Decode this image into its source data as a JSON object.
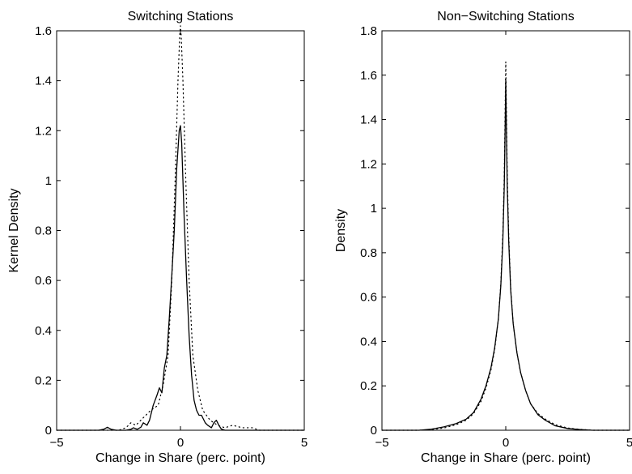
{
  "chart_data": [
    {
      "type": "line",
      "title": "Switching Stations",
      "xlabel": "Change in Share (perc. point)",
      "ylabel": "Kernel Density",
      "xlim": [
        -5,
        5
      ],
      "ylim": [
        0,
        1.6
      ],
      "xticks": [
        "-5",
        "0",
        "5"
      ],
      "yticks": [
        "0",
        "0.2",
        "0.4",
        "0.6",
        "0.8",
        "1",
        "1.2",
        "1.4",
        "1.6"
      ],
      "grid": false,
      "series": [
        {
          "style": "solid",
          "x": [
            -5,
            -3.3,
            -3.1,
            -2.95,
            -2.8,
            -2.6,
            -2.2,
            -2.0,
            -1.9,
            -1.75,
            -1.6,
            -1.5,
            -1.35,
            -1.25,
            -1.1,
            -0.95,
            -0.85,
            -0.75,
            -0.65,
            -0.55,
            -0.45,
            -0.35,
            -0.25,
            -0.15,
            -0.05,
            0.0,
            0.05,
            0.15,
            0.25,
            0.35,
            0.45,
            0.55,
            0.65,
            0.75,
            0.85,
            1.0,
            1.1,
            1.25,
            1.35,
            1.45,
            1.55,
            1.65,
            1.8,
            2.2,
            3.0,
            5.0
          ],
          "y": [
            0,
            0,
            0.004,
            0.012,
            0.004,
            0,
            0,
            0.004,
            0.01,
            0.004,
            0.012,
            0.03,
            0.02,
            0.04,
            0.1,
            0.14,
            0.17,
            0.15,
            0.25,
            0.3,
            0.45,
            0.62,
            0.8,
            1.05,
            1.2,
            1.22,
            1.15,
            0.85,
            0.6,
            0.38,
            0.22,
            0.12,
            0.08,
            0.06,
            0.06,
            0.03,
            0.02,
            0.01,
            0.03,
            0.04,
            0.02,
            0.005,
            0,
            0,
            0,
            0
          ]
        },
        {
          "style": "dotted",
          "x": [
            -5,
            -2.5,
            -2.2,
            -2.0,
            -1.8,
            -1.5,
            -1.2,
            -0.9,
            -0.7,
            -0.5,
            -0.35,
            -0.2,
            -0.1,
            -0.03,
            0.0,
            0.03,
            0.1,
            0.2,
            0.35,
            0.5,
            0.7,
            0.9,
            1.2,
            1.5,
            1.8,
            2.1,
            2.5,
            2.9,
            3.2,
            5.0
          ],
          "y": [
            0,
            0,
            0.01,
            0.03,
            0.02,
            0.05,
            0.08,
            0.1,
            0.18,
            0.3,
            0.6,
            1.05,
            1.4,
            1.58,
            1.62,
            1.58,
            1.4,
            1.05,
            0.6,
            0.3,
            0.16,
            0.08,
            0.04,
            0.02,
            0.01,
            0.02,
            0.01,
            0.01,
            0,
            0
          ]
        }
      ]
    },
    {
      "type": "line",
      "title": "Non−Switching Stations",
      "xlabel": "Change in Share (perc. point)",
      "ylabel": "Density",
      "xlim": [
        -5,
        5
      ],
      "ylim": [
        0,
        1.8
      ],
      "xticks": [
        "-5",
        "0",
        "5"
      ],
      "yticks": [
        "0",
        "0.2",
        "0.4",
        "0.6",
        "0.8",
        "1",
        "1.2",
        "1.4",
        "1.6",
        "1.8"
      ],
      "grid": false,
      "series": [
        {
          "style": "solid",
          "x": [
            -5,
            -3.5,
            -3.0,
            -2.5,
            -2.0,
            -1.6,
            -1.3,
            -1.0,
            -0.8,
            -0.6,
            -0.45,
            -0.3,
            -0.2,
            -0.12,
            -0.06,
            -0.02,
            0.0,
            0.02,
            0.06,
            0.12,
            0.2,
            0.3,
            0.45,
            0.6,
            0.8,
            1.0,
            1.3,
            1.6,
            2.0,
            2.5,
            3.0,
            3.5,
            5.0
          ],
          "y": [
            0,
            0,
            0.005,
            0.015,
            0.03,
            0.05,
            0.08,
            0.14,
            0.2,
            0.28,
            0.37,
            0.5,
            0.65,
            0.85,
            1.1,
            1.4,
            1.58,
            1.4,
            1.1,
            0.85,
            0.63,
            0.48,
            0.35,
            0.26,
            0.18,
            0.12,
            0.07,
            0.045,
            0.02,
            0.008,
            0.003,
            0,
            0
          ]
        },
        {
          "style": "dotted",
          "x": [
            -5,
            -3.5,
            -3.0,
            -2.5,
            -2.0,
            -1.6,
            -1.3,
            -1.0,
            -0.8,
            -0.6,
            -0.45,
            -0.3,
            -0.2,
            -0.12,
            -0.06,
            -0.02,
            0.0,
            0.02,
            0.06,
            0.12,
            0.2,
            0.3,
            0.45,
            0.6,
            0.8,
            1.0,
            1.3,
            1.6,
            2.0,
            2.5,
            3.0,
            3.5,
            5.0
          ],
          "y": [
            0,
            0,
            0.003,
            0.01,
            0.025,
            0.045,
            0.075,
            0.13,
            0.19,
            0.27,
            0.36,
            0.5,
            0.66,
            0.88,
            1.15,
            1.5,
            1.66,
            1.5,
            1.15,
            0.88,
            0.64,
            0.48,
            0.35,
            0.26,
            0.18,
            0.12,
            0.075,
            0.05,
            0.025,
            0.01,
            0.004,
            0,
            0
          ]
        }
      ]
    }
  ]
}
